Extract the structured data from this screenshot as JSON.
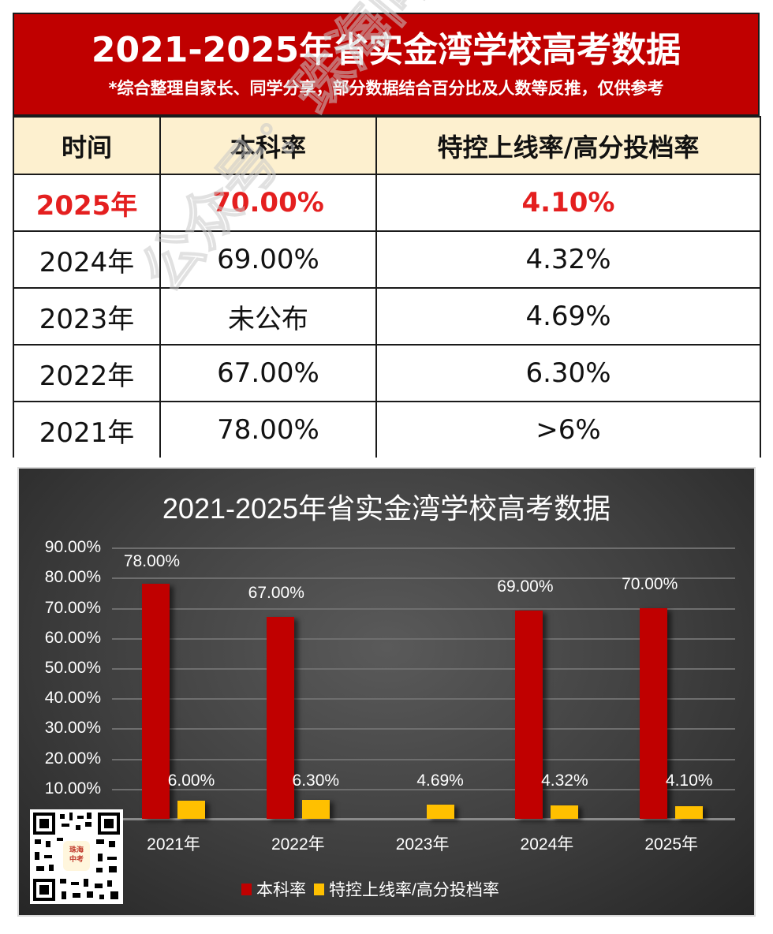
{
  "header": {
    "title": "2021-2025年省实金湾学校高考数据",
    "subtitle": "*综合整理自家长、同学分享，部分数据结合百分比及人数等反推，仅供参考"
  },
  "table": {
    "columns": [
      "时间",
      "本科率",
      "特控上线率/高分投档率"
    ],
    "rows": [
      {
        "year": "2025年",
        "bachelor_rate": "70.00%",
        "key_rate": "4.10%",
        "highlight": true
      },
      {
        "year": "2024年",
        "bachelor_rate": "69.00%",
        "key_rate": "4.32%"
      },
      {
        "year": "2023年",
        "bachelor_rate": "未公布",
        "key_rate": "4.69%"
      },
      {
        "year": "2022年",
        "bachelor_rate": "67.00%",
        "key_rate": "6.30%"
      },
      {
        "year": "2021年",
        "bachelor_rate": "78.00%",
        "key_rate": ">6%"
      }
    ]
  },
  "watermark": "公众号：珠海问问初高君",
  "qr": {
    "badge_line1": "珠海",
    "badge_line2": "中考"
  },
  "colors": {
    "header_red": "#c00000",
    "highlight_red": "#e41f1f",
    "header_row_bg": "#fdf0cf",
    "series_red": "#c00000",
    "series_yellow": "#ffc000"
  },
  "chart_data": {
    "type": "bar",
    "title": "2021-2025年省实金湾学校高考数据",
    "categories": [
      "2021年",
      "2022年",
      "2023年",
      "2024年",
      "2025年"
    ],
    "series": [
      {
        "name": "本科率",
        "color": "#c00000",
        "values": [
          78.0,
          67.0,
          null,
          69.0,
          70.0
        ],
        "labels": [
          "78.00%",
          "67.00%",
          "",
          "69.00%",
          "70.00%"
        ]
      },
      {
        "name": "特控上线率/高分投档率",
        "color": "#ffc000",
        "values": [
          6.0,
          6.3,
          4.69,
          4.32,
          4.1
        ],
        "labels": [
          "6.00%",
          "6.30%",
          "4.69%",
          "4.32%",
          "4.10%"
        ]
      }
    ],
    "yticks": [
      "90.00%",
      "80.00%",
      "70.00%",
      "60.00%",
      "50.00%",
      "40.00%",
      "30.00%",
      "20.00%",
      "10.00%"
    ],
    "ylim": [
      0,
      90
    ],
    "xlabel": "",
    "ylabel": "",
    "grid": true,
    "legend_position": "bottom"
  }
}
